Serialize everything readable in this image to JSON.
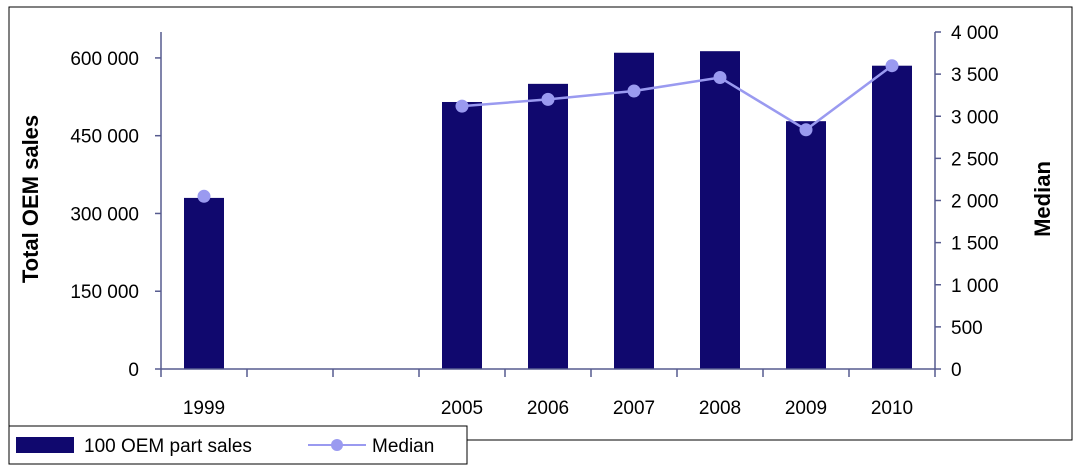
{
  "chart_data": {
    "type": "bar",
    "categories": [
      "1999",
      "",
      "",
      "2005",
      "2006",
      "2007",
      "2008",
      "2009",
      "2010"
    ],
    "series": [
      {
        "name": "100 OEM part sales",
        "type": "bar",
        "axis": "left",
        "values": [
          330000,
          null,
          null,
          515000,
          550000,
          610000,
          613000,
          478000,
          585000
        ]
      },
      {
        "name": "Median",
        "type": "line",
        "axis": "right",
        "values": [
          2050,
          null,
          null,
          3120,
          3200,
          3300,
          3460,
          2840,
          3600
        ]
      }
    ],
    "ylabel": "Total OEM sales",
    "y2label": "Median",
    "ylim": [
      0,
      650000
    ],
    "y2lim": [
      0,
      4000
    ],
    "yticks": [
      "0",
      "150 000",
      "300 000",
      "450 000",
      "600 000"
    ],
    "y2ticks": [
      "0",
      "500",
      "1 000",
      "1 500",
      "2 000",
      "2 500",
      "3 000",
      "3 500",
      "4 000"
    ],
    "legend_position": "bottom-left",
    "colors": {
      "bar": "#10086e",
      "line": "#9a9af0",
      "axis": "#565b8f"
    }
  }
}
